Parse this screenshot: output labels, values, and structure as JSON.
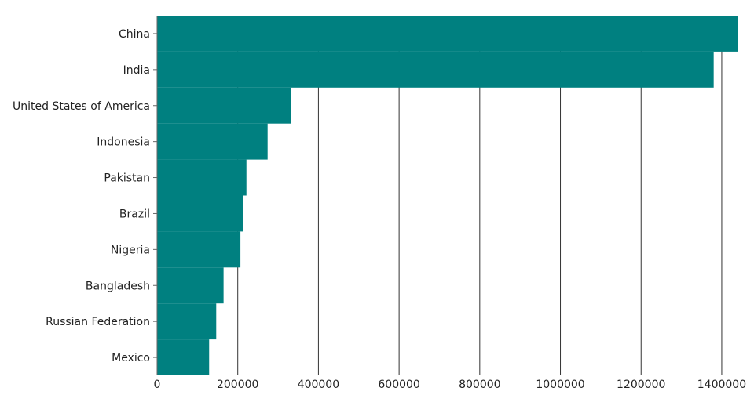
{
  "chart_data": {
    "type": "bar",
    "orientation": "horizontal",
    "categories": [
      "China",
      "India",
      "United States of America",
      "Indonesia",
      "Pakistan",
      "Brazil",
      "Nigeria",
      "Bangladesh",
      "Russian Federation",
      "Mexico"
    ],
    "values": [
      1441000,
      1380000,
      332000,
      274000,
      221500,
      213700,
      206600,
      164800,
      146600,
      129000
    ],
    "xlim": [
      0,
      1441000
    ],
    "xticks": [
      0,
      200000,
      400000,
      600000,
      800000,
      1000000,
      1200000,
      1400000
    ],
    "xtick_labels": [
      "0",
      "200000",
      "400000",
      "600000",
      "800000",
      "1000000",
      "1200000",
      "1400000"
    ],
    "title": "",
    "xlabel": "",
    "ylabel": "",
    "grid": "vertical",
    "bar_color": "#008080"
  }
}
